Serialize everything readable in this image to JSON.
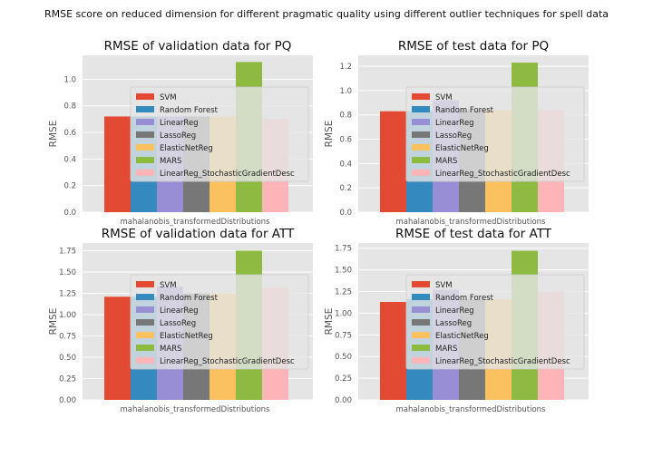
{
  "figure": {
    "suptitle": "RMSE score on reduced dimension for different pragmatic quality using different outlier techniques for spell data"
  },
  "colors": {
    "background": "#e5e5e5",
    "grid": "#ffffff",
    "text": "#555555",
    "title": "#111111",
    "legend_bg": "#e5e5e5",
    "legend_border": "#cccccc"
  },
  "chart_data": [
    {
      "type": "bar",
      "title": "RMSE of validation data for PQ",
      "xlabel": "",
      "ylabel": "RMSE",
      "categories": [
        "mahalanobis_transformedDistributions"
      ],
      "ylim": [
        0,
        1.18
      ],
      "yticks": [
        0.0,
        0.2,
        0.4,
        0.6,
        0.8,
        1.0
      ],
      "legend": "center",
      "grid": true,
      "series": [
        {
          "name": "SVM",
          "color": "#E24A33",
          "values": [
            0.72
          ]
        },
        {
          "name": "Random Forest",
          "color": "#348ABD",
          "values": [
            0.72
          ]
        },
        {
          "name": "LinearReg",
          "color": "#988ED5",
          "values": [
            0.72
          ]
        },
        {
          "name": "LassoReg",
          "color": "#777777",
          "values": [
            0.72
          ]
        },
        {
          "name": "ElasticNetReg",
          "color": "#FBC15E",
          "values": [
            0.72
          ]
        },
        {
          "name": "MARS",
          "color": "#8EBA42",
          "values": [
            1.13
          ]
        },
        {
          "name": "LinearReg_StochasticGradientDesc",
          "color": "#FFB5B8",
          "values": [
            0.7
          ]
        }
      ]
    },
    {
      "type": "bar",
      "title": "RMSE of test data for PQ",
      "xlabel": "",
      "ylabel": "RMSE",
      "categories": [
        "mahalanobis_transformedDistributions"
      ],
      "ylim": [
        0,
        1.29
      ],
      "yticks": [
        0.0,
        0.2,
        0.4,
        0.6,
        0.8,
        1.0,
        1.2
      ],
      "legend": "center",
      "grid": true,
      "series": [
        {
          "name": "SVM",
          "color": "#E24A33",
          "values": [
            0.83
          ]
        },
        {
          "name": "Random Forest",
          "color": "#348ABD",
          "values": [
            0.83
          ]
        },
        {
          "name": "LinearReg",
          "color": "#988ED5",
          "values": [
            0.92
          ]
        },
        {
          "name": "LassoReg",
          "color": "#777777",
          "values": [
            0.84
          ]
        },
        {
          "name": "ElasticNetReg",
          "color": "#FBC15E",
          "values": [
            0.84
          ]
        },
        {
          "name": "MARS",
          "color": "#8EBA42",
          "values": [
            1.23
          ]
        },
        {
          "name": "LinearReg_StochasticGradientDesc",
          "color": "#FFB5B8",
          "values": [
            0.84
          ]
        }
      ]
    },
    {
      "type": "bar",
      "title": "RMSE of validation data for ATT",
      "xlabel": "",
      "ylabel": "RMSE",
      "categories": [
        "mahalanobis_transformedDistributions"
      ],
      "ylim": [
        0,
        1.84
      ],
      "yticks": [
        0.0,
        0.25,
        0.5,
        0.75,
        1.0,
        1.25,
        1.5,
        1.75
      ],
      "ytick_labels": [
        "0.00",
        "0.25",
        "0.50",
        "0.75",
        "1.00",
        "1.25",
        "1.50",
        "1.75"
      ],
      "legend": "center",
      "grid": true,
      "series": [
        {
          "name": "SVM",
          "color": "#E24A33",
          "values": [
            1.21
          ]
        },
        {
          "name": "Random Forest",
          "color": "#348ABD",
          "values": [
            1.21
          ]
        },
        {
          "name": "LinearReg",
          "color": "#988ED5",
          "values": [
            1.33
          ]
        },
        {
          "name": "LassoReg",
          "color": "#777777",
          "values": [
            1.25
          ]
        },
        {
          "name": "ElasticNetReg",
          "color": "#FBC15E",
          "values": [
            1.25
          ]
        },
        {
          "name": "MARS",
          "color": "#8EBA42",
          "values": [
            1.75
          ]
        },
        {
          "name": "LinearReg_StochasticGradientDesc",
          "color": "#FFB5B8",
          "values": [
            1.32
          ]
        }
      ]
    },
    {
      "type": "bar",
      "title": "RMSE of test data for ATT",
      "xlabel": "",
      "ylabel": "RMSE",
      "categories": [
        "mahalanobis_transformedDistributions"
      ],
      "ylim": [
        0,
        1.81
      ],
      "yticks": [
        0.0,
        0.25,
        0.5,
        0.75,
        1.0,
        1.25,
        1.5,
        1.75
      ],
      "ytick_labels": [
        "0.00",
        "0.25",
        "0.50",
        "0.75",
        "1.00",
        "1.25",
        "1.50",
        "1.75"
      ],
      "legend": "center",
      "grid": true,
      "series": [
        {
          "name": "SVM",
          "color": "#E24A33",
          "values": [
            1.13
          ]
        },
        {
          "name": "Random Forest",
          "color": "#348ABD",
          "values": [
            1.16
          ]
        },
        {
          "name": "LinearReg",
          "color": "#988ED5",
          "values": [
            1.27
          ]
        },
        {
          "name": "LassoReg",
          "color": "#777777",
          "values": [
            1.16
          ]
        },
        {
          "name": "ElasticNetReg",
          "color": "#FBC15E",
          "values": [
            1.16
          ]
        },
        {
          "name": "MARS",
          "color": "#8EBA42",
          "values": [
            1.72
          ]
        },
        {
          "name": "LinearReg_StochasticGradientDesc",
          "color": "#FFB5B8",
          "values": [
            1.25
          ]
        }
      ]
    }
  ]
}
